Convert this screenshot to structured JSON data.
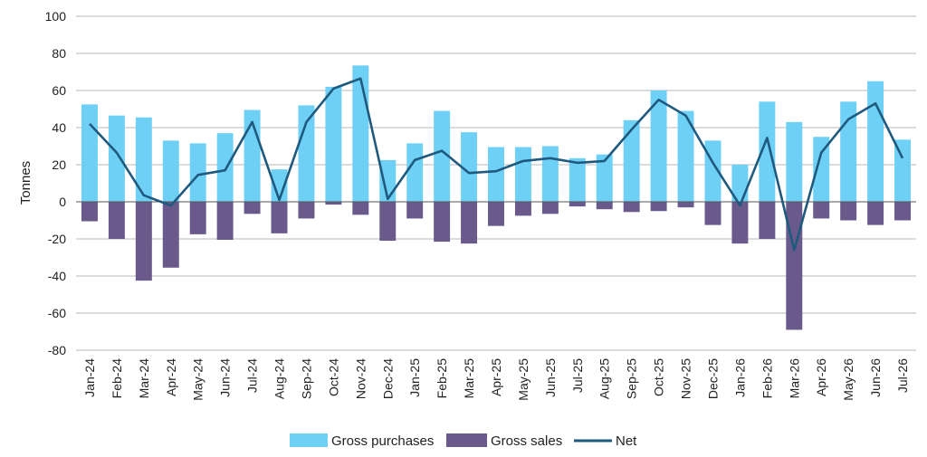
{
  "chart_data": {
    "type": "bar",
    "ylabel": "Tonnes",
    "ylim": [
      -80,
      100
    ],
    "yticks": [
      -80,
      -60,
      -40,
      -20,
      0,
      20,
      40,
      60,
      80,
      100
    ],
    "grid": true,
    "legend_position": "bottom",
    "categories": [
      "Jan-24",
      "Feb-24",
      "Mar-24",
      "Apr-24",
      "May-24",
      "Jun-24",
      "Jul-24",
      "Aug-24",
      "Sep-24",
      "Oct-24",
      "Nov-24",
      "Dec-24",
      "Jan-25",
      "Feb-25",
      "Mar-25",
      "Apr-25",
      "May-25",
      "Jun-25",
      "Jul-25",
      "Aug-25",
      "Sep-25",
      "Oct-25",
      "Nov-25",
      "Dec-25",
      "Jan-26",
      "Feb-26",
      "Mar-26",
      "Apr-26",
      "May-26",
      "Jun-26",
      "Jul-26"
    ],
    "series": [
      {
        "name": "Gross purchases",
        "kind": "bar",
        "color": "#6fd0f6",
        "values": [
          52.5,
          46.5,
          45.5,
          33,
          31.5,
          37,
          49.5,
          17.5,
          52,
          62,
          73.5,
          22.5,
          31.5,
          49,
          37.5,
          29.5,
          29.5,
          30,
          23.5,
          25.5,
          44,
          60,
          49,
          33,
          20,
          54,
          43,
          35,
          54,
          65,
          33.5
        ]
      },
      {
        "name": "Gross sales",
        "kind": "bar",
        "color": "#6a5a8c",
        "values": [
          -10.5,
          -20,
          -42.5,
          -35.5,
          -17.5,
          -20.5,
          -6.5,
          -17,
          -9,
          -1.5,
          -7,
          -21,
          -9,
          -21.5,
          -22.5,
          -13,
          -7.5,
          -6.5,
          -2.5,
          -4,
          -5.5,
          -5,
          -3,
          -12.5,
          -22.5,
          -20,
          -69,
          -9,
          -10,
          -12.5,
          -10
        ]
      },
      {
        "name": "Net",
        "kind": "line",
        "color": "#1f5a7e",
        "values": [
          42,
          26.5,
          3.5,
          -2,
          14.5,
          17,
          43,
          1,
          43,
          61,
          66.5,
          1.5,
          22.5,
          27.5,
          15.5,
          16.5,
          22,
          23.5,
          21,
          22,
          39,
          55,
          46.5,
          21,
          -2,
          34.5,
          -26,
          26.5,
          44.5,
          53,
          23.5
        ]
      }
    ]
  }
}
